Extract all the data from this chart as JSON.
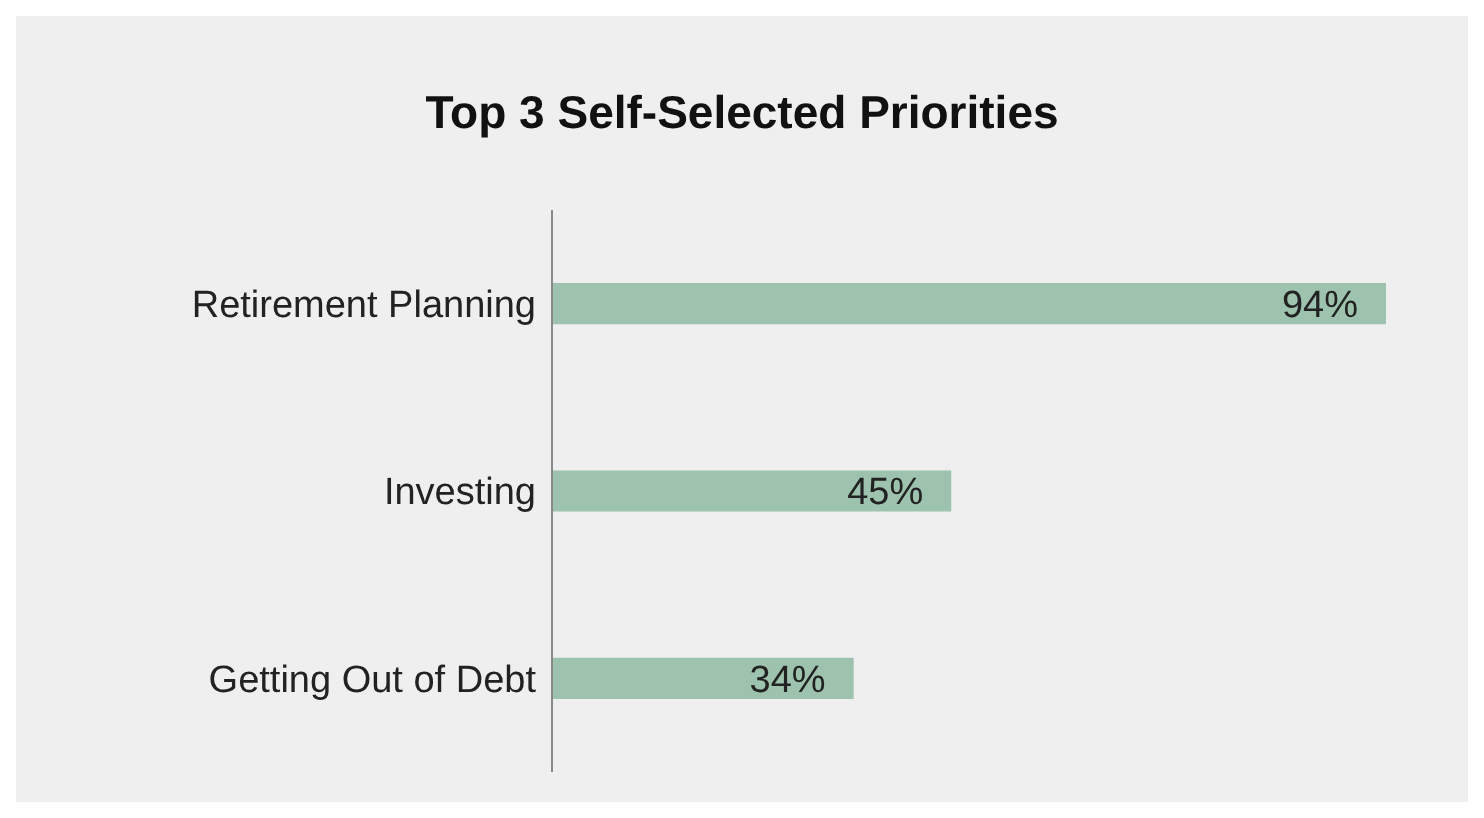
{
  "chart_data": {
    "type": "bar",
    "orientation": "horizontal",
    "title": "Top 3 Self-Selected Priorities",
    "categories": [
      "Retirement Planning",
      "Investing",
      "Getting Out of Debt"
    ],
    "values": [
      94,
      45,
      34
    ],
    "color": "#9dc3ae",
    "value_labels": [
      "94%",
      "45%",
      "34%"
    ],
    "grid": false,
    "legend": false
  }
}
